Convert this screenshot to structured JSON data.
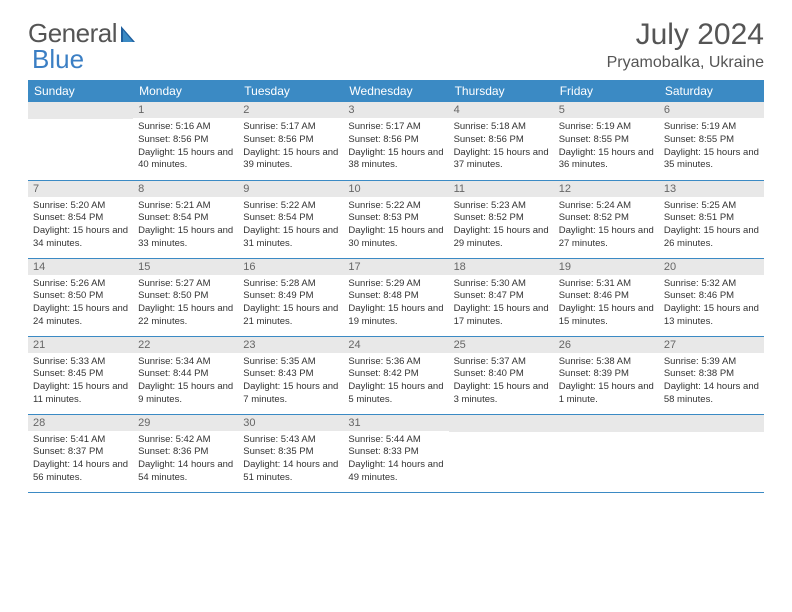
{
  "logo": {
    "part1": "General",
    "part2": "Blue"
  },
  "title": "July 2024",
  "location": "Pryamobalka, Ukraine",
  "colors": {
    "header_bg": "#3b8ac4",
    "header_text": "#ffffff",
    "daynum_bg": "#e8e8e8",
    "daynum_text": "#666666",
    "body_text": "#333333",
    "rule": "#3b8ac4",
    "logo_gray": "#555555",
    "logo_blue": "#3b7fc4"
  },
  "weekdays": [
    "Sunday",
    "Monday",
    "Tuesday",
    "Wednesday",
    "Thursday",
    "Friday",
    "Saturday"
  ],
  "weeks": [
    [
      {
        "day": "",
        "sunrise": "",
        "sunset": "",
        "daylight": ""
      },
      {
        "day": "1",
        "sunrise": "Sunrise: 5:16 AM",
        "sunset": "Sunset: 8:56 PM",
        "daylight": "Daylight: 15 hours and 40 minutes."
      },
      {
        "day": "2",
        "sunrise": "Sunrise: 5:17 AM",
        "sunset": "Sunset: 8:56 PM",
        "daylight": "Daylight: 15 hours and 39 minutes."
      },
      {
        "day": "3",
        "sunrise": "Sunrise: 5:17 AM",
        "sunset": "Sunset: 8:56 PM",
        "daylight": "Daylight: 15 hours and 38 minutes."
      },
      {
        "day": "4",
        "sunrise": "Sunrise: 5:18 AM",
        "sunset": "Sunset: 8:56 PM",
        "daylight": "Daylight: 15 hours and 37 minutes."
      },
      {
        "day": "5",
        "sunrise": "Sunrise: 5:19 AM",
        "sunset": "Sunset: 8:55 PM",
        "daylight": "Daylight: 15 hours and 36 minutes."
      },
      {
        "day": "6",
        "sunrise": "Sunrise: 5:19 AM",
        "sunset": "Sunset: 8:55 PM",
        "daylight": "Daylight: 15 hours and 35 minutes."
      }
    ],
    [
      {
        "day": "7",
        "sunrise": "Sunrise: 5:20 AM",
        "sunset": "Sunset: 8:54 PM",
        "daylight": "Daylight: 15 hours and 34 minutes."
      },
      {
        "day": "8",
        "sunrise": "Sunrise: 5:21 AM",
        "sunset": "Sunset: 8:54 PM",
        "daylight": "Daylight: 15 hours and 33 minutes."
      },
      {
        "day": "9",
        "sunrise": "Sunrise: 5:22 AM",
        "sunset": "Sunset: 8:54 PM",
        "daylight": "Daylight: 15 hours and 31 minutes."
      },
      {
        "day": "10",
        "sunrise": "Sunrise: 5:22 AM",
        "sunset": "Sunset: 8:53 PM",
        "daylight": "Daylight: 15 hours and 30 minutes."
      },
      {
        "day": "11",
        "sunrise": "Sunrise: 5:23 AM",
        "sunset": "Sunset: 8:52 PM",
        "daylight": "Daylight: 15 hours and 29 minutes."
      },
      {
        "day": "12",
        "sunrise": "Sunrise: 5:24 AM",
        "sunset": "Sunset: 8:52 PM",
        "daylight": "Daylight: 15 hours and 27 minutes."
      },
      {
        "day": "13",
        "sunrise": "Sunrise: 5:25 AM",
        "sunset": "Sunset: 8:51 PM",
        "daylight": "Daylight: 15 hours and 26 minutes."
      }
    ],
    [
      {
        "day": "14",
        "sunrise": "Sunrise: 5:26 AM",
        "sunset": "Sunset: 8:50 PM",
        "daylight": "Daylight: 15 hours and 24 minutes."
      },
      {
        "day": "15",
        "sunrise": "Sunrise: 5:27 AM",
        "sunset": "Sunset: 8:50 PM",
        "daylight": "Daylight: 15 hours and 22 minutes."
      },
      {
        "day": "16",
        "sunrise": "Sunrise: 5:28 AM",
        "sunset": "Sunset: 8:49 PM",
        "daylight": "Daylight: 15 hours and 21 minutes."
      },
      {
        "day": "17",
        "sunrise": "Sunrise: 5:29 AM",
        "sunset": "Sunset: 8:48 PM",
        "daylight": "Daylight: 15 hours and 19 minutes."
      },
      {
        "day": "18",
        "sunrise": "Sunrise: 5:30 AM",
        "sunset": "Sunset: 8:47 PM",
        "daylight": "Daylight: 15 hours and 17 minutes."
      },
      {
        "day": "19",
        "sunrise": "Sunrise: 5:31 AM",
        "sunset": "Sunset: 8:46 PM",
        "daylight": "Daylight: 15 hours and 15 minutes."
      },
      {
        "day": "20",
        "sunrise": "Sunrise: 5:32 AM",
        "sunset": "Sunset: 8:46 PM",
        "daylight": "Daylight: 15 hours and 13 minutes."
      }
    ],
    [
      {
        "day": "21",
        "sunrise": "Sunrise: 5:33 AM",
        "sunset": "Sunset: 8:45 PM",
        "daylight": "Daylight: 15 hours and 11 minutes."
      },
      {
        "day": "22",
        "sunrise": "Sunrise: 5:34 AM",
        "sunset": "Sunset: 8:44 PM",
        "daylight": "Daylight: 15 hours and 9 minutes."
      },
      {
        "day": "23",
        "sunrise": "Sunrise: 5:35 AM",
        "sunset": "Sunset: 8:43 PM",
        "daylight": "Daylight: 15 hours and 7 minutes."
      },
      {
        "day": "24",
        "sunrise": "Sunrise: 5:36 AM",
        "sunset": "Sunset: 8:42 PM",
        "daylight": "Daylight: 15 hours and 5 minutes."
      },
      {
        "day": "25",
        "sunrise": "Sunrise: 5:37 AM",
        "sunset": "Sunset: 8:40 PM",
        "daylight": "Daylight: 15 hours and 3 minutes."
      },
      {
        "day": "26",
        "sunrise": "Sunrise: 5:38 AM",
        "sunset": "Sunset: 8:39 PM",
        "daylight": "Daylight: 15 hours and 1 minute."
      },
      {
        "day": "27",
        "sunrise": "Sunrise: 5:39 AM",
        "sunset": "Sunset: 8:38 PM",
        "daylight": "Daylight: 14 hours and 58 minutes."
      }
    ],
    [
      {
        "day": "28",
        "sunrise": "Sunrise: 5:41 AM",
        "sunset": "Sunset: 8:37 PM",
        "daylight": "Daylight: 14 hours and 56 minutes."
      },
      {
        "day": "29",
        "sunrise": "Sunrise: 5:42 AM",
        "sunset": "Sunset: 8:36 PM",
        "daylight": "Daylight: 14 hours and 54 minutes."
      },
      {
        "day": "30",
        "sunrise": "Sunrise: 5:43 AM",
        "sunset": "Sunset: 8:35 PM",
        "daylight": "Daylight: 14 hours and 51 minutes."
      },
      {
        "day": "31",
        "sunrise": "Sunrise: 5:44 AM",
        "sunset": "Sunset: 8:33 PM",
        "daylight": "Daylight: 14 hours and 49 minutes."
      },
      {
        "day": "",
        "sunrise": "",
        "sunset": "",
        "daylight": ""
      },
      {
        "day": "",
        "sunrise": "",
        "sunset": "",
        "daylight": ""
      },
      {
        "day": "",
        "sunrise": "",
        "sunset": "",
        "daylight": ""
      }
    ]
  ]
}
